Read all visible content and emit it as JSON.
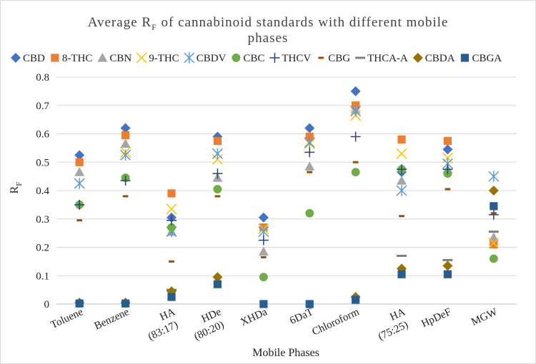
{
  "chart_data": {
    "type": "scatter",
    "title_main": "Average R",
    "title_sub": "F",
    "title_rest_line1": " of cannabinoid standards with different mobile",
    "title_line2": "phases",
    "xlabel": "Mobile Phases",
    "ylabel_main": "R",
    "ylabel_sub": "F",
    "ylim": [
      0,
      0.8
    ],
    "yticks": [
      "0",
      "0.1",
      "0.2",
      "0.3",
      "0.4",
      "0.5",
      "0.6",
      "0.7",
      "0.8"
    ],
    "grid": true,
    "legend_position": "top",
    "categories": [
      [
        "Toluene"
      ],
      [
        "Benzene"
      ],
      [
        "HA",
        "(83:17)"
      ],
      [
        "HDe",
        "(80:20)"
      ],
      [
        "XHDa"
      ],
      [
        "6DaT"
      ],
      [
        "Chloroform"
      ],
      [
        "HA",
        "(75:25)"
      ],
      [
        "HpDeF"
      ],
      [
        "MGW"
      ]
    ],
    "series": [
      {
        "name": "CBD",
        "marker": "diamond",
        "color": "#4472C4",
        "values": [
          0.525,
          0.62,
          0.305,
          0.59,
          0.305,
          0.62,
          0.75,
          0.465,
          0.545,
          null
        ]
      },
      {
        "name": "8-THC",
        "marker": "square",
        "color": "#ED7D31",
        "values": [
          0.5,
          0.595,
          0.39,
          0.575,
          0.27,
          0.59,
          0.7,
          0.58,
          0.575,
          0.21
        ]
      },
      {
        "name": "CBN",
        "marker": "triangle",
        "color": "#A5A5A5",
        "values": [
          0.465,
          0.565,
          0.255,
          0.445,
          0.185,
          0.485,
          0.685,
          0.435,
          0.475,
          0.235
        ]
      },
      {
        "name": "9-THC",
        "marker": "x",
        "color": "#FFC000",
        "values": [
          0.425,
          0.535,
          0.335,
          0.51,
          0.265,
          0.565,
          0.665,
          0.53,
          0.515,
          0.215
        ]
      },
      {
        "name": "CBDV",
        "marker": "asterisk",
        "color": "#5B9BD5",
        "values": [
          0.425,
          0.525,
          0.255,
          0.53,
          0.255,
          0.57,
          0.68,
          0.4,
          0.495,
          0.45
        ]
      },
      {
        "name": "CBC",
        "marker": "circle",
        "color": "#70AD47",
        "values": [
          0.35,
          0.445,
          0.27,
          0.405,
          0.095,
          0.32,
          0.465,
          0.475,
          0.46,
          0.16
        ]
      },
      {
        "name": "THCV",
        "marker": "plus",
        "color": "#264478",
        "values": [
          0.35,
          0.435,
          0.295,
          0.46,
          0.225,
          0.535,
          0.59,
          0.475,
          0.475,
          0.315
        ]
      },
      {
        "name": "CBG",
        "marker": "dash",
        "color": "#9E480E",
        "values": [
          0.295,
          0.38,
          0.15,
          0.38,
          0.165,
          0.465,
          0.5,
          0.31,
          0.405,
          0.32
        ]
      },
      {
        "name": "THCA-A",
        "marker": "longdash",
        "color": "#7F7F7F",
        "values": [
          null,
          null,
          0.05,
          null,
          null,
          null,
          null,
          0.17,
          0.155,
          0.255
        ]
      },
      {
        "name": "CBDA",
        "marker": "diamond",
        "color": "#997300",
        "values": [
          0.005,
          0.005,
          0.045,
          0.095,
          null,
          null,
          0.025,
          0.125,
          0.135,
          0.4
        ]
      },
      {
        "name": "CBGA",
        "marker": "square",
        "color": "#255E91",
        "values": [
          0.002,
          0.002,
          0.025,
          0.07,
          0.0,
          0.0,
          0.015,
          0.105,
          0.105,
          0.345
        ]
      }
    ]
  }
}
